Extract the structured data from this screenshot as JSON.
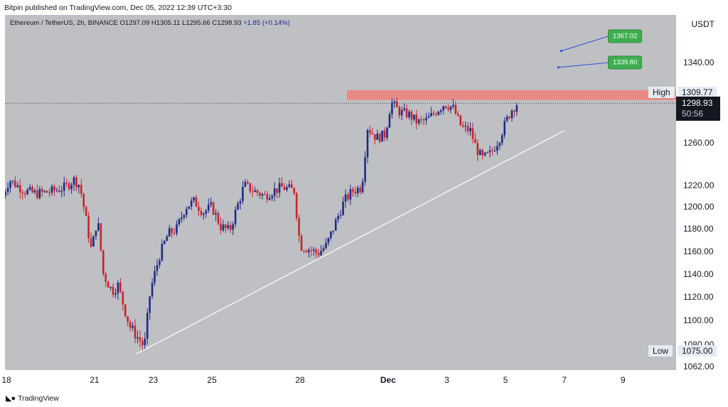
{
  "publish_line": "Bitpin published on TradingView.com, Dec 05, 2022 12:39 UTC+3:30",
  "legend": {
    "symbol": "Ethereum / TetherUS, 2h, BINANCE",
    "open_label": "O",
    "open": "1297.09",
    "high_label": "H",
    "high": "1305.11",
    "low_label": "L",
    "low": "1295.66",
    "close_label": "C",
    "close": "1298.93",
    "change": "+1.85 (+0.14%)"
  },
  "brand": "TradingView",
  "colors": {
    "background": "#bfc0c4",
    "up": "#1f2a87",
    "down": "#c8242b",
    "resistance_zone": "#e88b86",
    "marker": "#3fae4f",
    "trendline": "#ffffff"
  },
  "chart_data": {
    "type": "candlestick",
    "title": "Ethereum / TetherUS, 2h, BINANCE",
    "y_unit": "USDT",
    "y_scale": "log",
    "ylim": [
      1060,
      1400
    ],
    "y_ticks": [
      {
        "value": 1062,
        "label": "1062.00"
      },
      {
        "value": 1080,
        "label": "1080.00"
      },
      {
        "value": 1100,
        "label": "1100.00"
      },
      {
        "value": 1120,
        "label": "1120.00"
      },
      {
        "value": 1140,
        "label": "1140.00"
      },
      {
        "value": 1160,
        "label": "1160.00"
      },
      {
        "value": 1180,
        "label": "1180.00"
      },
      {
        "value": 1200,
        "label": "1200.00"
      },
      {
        "value": 1220,
        "label": "1220.00"
      },
      {
        "value": 1260,
        "label": "1260.00"
      },
      {
        "value": 1340,
        "label": "1340.00"
      }
    ],
    "x_ticks": [
      {
        "day": 18,
        "label": "18",
        "bold": false
      },
      {
        "day": 21,
        "label": "21",
        "bold": false
      },
      {
        "day": 23,
        "label": "23",
        "bold": false
      },
      {
        "day": 25,
        "label": "25",
        "bold": false
      },
      {
        "day": 28,
        "label": "28",
        "bold": false
      },
      {
        "day": 31,
        "label": "Dec",
        "bold": true
      },
      {
        "day": 33,
        "label": "3",
        "bold": false
      },
      {
        "day": 35,
        "label": "5",
        "bold": false
      },
      {
        "day": 37,
        "label": "7",
        "bold": false
      },
      {
        "day": 39,
        "label": "9",
        "bold": false
      }
    ],
    "x_domain_days": [
      17.8,
      40.5
    ],
    "price_path": [
      [
        17.8,
        1205
      ],
      [
        18.1,
        1225
      ],
      [
        18.6,
        1215
      ],
      [
        19.0,
        1212
      ],
      [
        19.5,
        1214
      ],
      [
        20.0,
        1218
      ],
      [
        20.3,
        1225
      ],
      [
        20.5,
        1220
      ],
      [
        20.9,
        1160
      ],
      [
        21.1,
        1190
      ],
      [
        21.3,
        1140
      ],
      [
        21.6,
        1125
      ],
      [
        21.8,
        1130
      ],
      [
        22.0,
        1112
      ],
      [
        22.2,
        1095
      ],
      [
        22.5,
        1085
      ],
      [
        22.7,
        1078
      ],
      [
        22.9,
        1125
      ],
      [
        23.2,
        1155
      ],
      [
        23.5,
        1175
      ],
      [
        23.8,
        1180
      ],
      [
        24.1,
        1200
      ],
      [
        24.4,
        1205
      ],
      [
        24.7,
        1195
      ],
      [
        25.0,
        1200
      ],
      [
        25.3,
        1182
      ],
      [
        25.6,
        1178
      ],
      [
        25.8,
        1195
      ],
      [
        26.1,
        1220
      ],
      [
        26.4,
        1215
      ],
      [
        26.8,
        1210
      ],
      [
        27.1,
        1215
      ],
      [
        27.4,
        1218
      ],
      [
        27.8,
        1215
      ],
      [
        28.0,
        1165
      ],
      [
        28.3,
        1162
      ],
      [
        28.6,
        1158
      ],
      [
        28.9,
        1165
      ],
      [
        29.2,
        1185
      ],
      [
        29.5,
        1205
      ],
      [
        29.8,
        1215
      ],
      [
        30.1,
        1218
      ],
      [
        30.3,
        1275
      ],
      [
        30.6,
        1265
      ],
      [
        30.9,
        1268
      ],
      [
        31.1,
        1300
      ],
      [
        31.4,
        1290
      ],
      [
        31.7,
        1288
      ],
      [
        32.0,
        1280
      ],
      [
        32.3,
        1282
      ],
      [
        32.6,
        1290
      ],
      [
        32.9,
        1298
      ],
      [
        33.2,
        1295
      ],
      [
        33.5,
        1275
      ],
      [
        33.8,
        1272
      ],
      [
        34.0,
        1255
      ],
      [
        34.2,
        1245
      ],
      [
        34.5,
        1250
      ],
      [
        34.8,
        1265
      ],
      [
        35.0,
        1280
      ],
      [
        35.2,
        1292
      ],
      [
        35.4,
        1298.93
      ]
    ],
    "resistance_zone": {
      "low": 1302,
      "high": 1312,
      "from_day": 29.6
    },
    "trendline": {
      "from": [
        22.4,
        1072
      ],
      "to": [
        37.0,
        1272
      ]
    },
    "current_price": {
      "value": 1298.93,
      "label": "1298.93",
      "countdown": "50:56"
    },
    "markers": [
      {
        "label": "1367.02",
        "value": 1367.02,
        "anchor_day": 36.9,
        "anchor_price": 1352
      },
      {
        "label": "1339.80",
        "value": 1339.8,
        "anchor_day": 36.8,
        "anchor_price": 1335
      }
    ],
    "axis_tags": {
      "high": {
        "label": "High",
        "value": "1309.77"
      },
      "low": {
        "label": "Low",
        "value": "1075.00"
      }
    }
  }
}
